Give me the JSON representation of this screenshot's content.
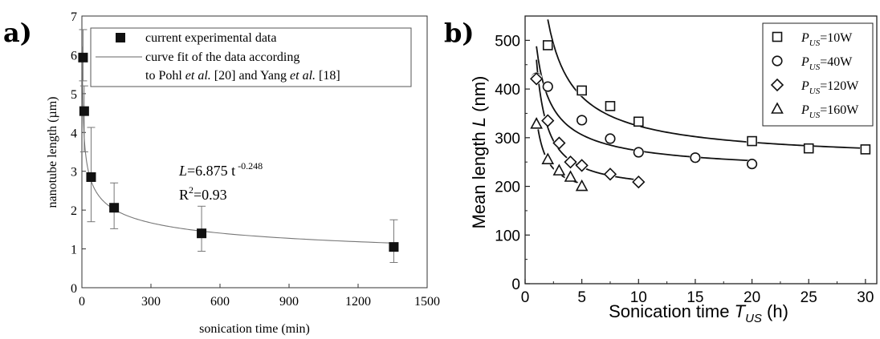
{
  "chart_data": [
    {
      "panel": "a)",
      "type": "scatter",
      "xlabel": "sonication time (min)",
      "ylabel": "nanotube length (µm)",
      "xlim": [
        0,
        1500
      ],
      "ylim": [
        0,
        7
      ],
      "xticks": [
        0,
        300,
        600,
        900,
        1200,
        1500
      ],
      "yticks": [
        0,
        1,
        2,
        3,
        4,
        5,
        6,
        7
      ],
      "series": [
        {
          "name": "current experimental data",
          "marker": "filled-square",
          "x": [
            5,
            10,
            40,
            140,
            520,
            1355
          ],
          "y": [
            5.93,
            4.55,
            2.85,
            2.06,
            1.4,
            1.05
          ],
          "err_low": [
            0.6,
            1.05,
            1.15,
            0.54,
            0.46,
            0.4
          ],
          "err_high": [
            0.72,
            0.65,
            1.28,
            0.64,
            0.7,
            0.7
          ]
        },
        {
          "name_lines": [
            "curve fit of the data according",
            "to Pohl et al. [20] and Yang et al. [18]"
          ],
          "type": "line",
          "equation": {
            "a": 6.875,
            "b": -0.248
          }
        }
      ],
      "annotations": {
        "fit_L": "L",
        "fit_mid": "=6.875 t",
        "fit_exp": "-0.248",
        "r2_R": "R",
        "r2_sup": "2",
        "r2_val": "=0.93"
      },
      "legend_position": "top",
      "grid": false
    },
    {
      "panel": "b)",
      "type": "scatter",
      "xlabel_main": "Sonication time ",
      "xlabel_var": "T",
      "xlabel_sub": "US",
      "xlabel_unit": " (h)",
      "ylabel_main": "Mean length ",
      "ylabel_var": "L",
      "ylabel_unit": " (nm)",
      "xlim": [
        0,
        31
      ],
      "ylim": [
        0,
        550
      ],
      "xticks": [
        0,
        5,
        10,
        15,
        20,
        25,
        30
      ],
      "yticks": [
        0,
        100,
        200,
        300,
        400,
        500
      ],
      "legend_position": "top-right",
      "grid": false,
      "series": [
        {
          "name": "P_US=10W",
          "legend_var": "P",
          "legend_sub": "US",
          "legend_val": "=10W",
          "marker": "square",
          "x": [
            2,
            5,
            7.5,
            10,
            20,
            25,
            30
          ],
          "y": [
            490,
            397,
            365,
            333,
            293,
            278,
            276
          ]
        },
        {
          "name": "P_US=40W",
          "legend_var": "P",
          "legend_sub": "US",
          "legend_val": "=40W",
          "marker": "circle",
          "x": [
            1,
            2,
            5,
            7.5,
            10,
            15,
            20
          ],
          "y": [
            423,
            405,
            336,
            298,
            270,
            259,
            246
          ]
        },
        {
          "name": "P_US=120W",
          "legend_var": "P",
          "legend_sub": "US",
          "legend_val": "=120W",
          "marker": "diamond",
          "x": [
            1,
            2,
            3,
            4,
            5,
            7.5,
            10
          ],
          "y": [
            421,
            335,
            289,
            250,
            243,
            225,
            209
          ]
        },
        {
          "name": "P_US=160W",
          "legend_var": "P",
          "legend_sub": "US",
          "legend_val": "=160W",
          "marker": "triangle",
          "x": [
            1,
            2,
            3,
            4,
            5
          ],
          "y": [
            328,
            255,
            232,
            219,
            200
          ]
        }
      ]
    }
  ]
}
